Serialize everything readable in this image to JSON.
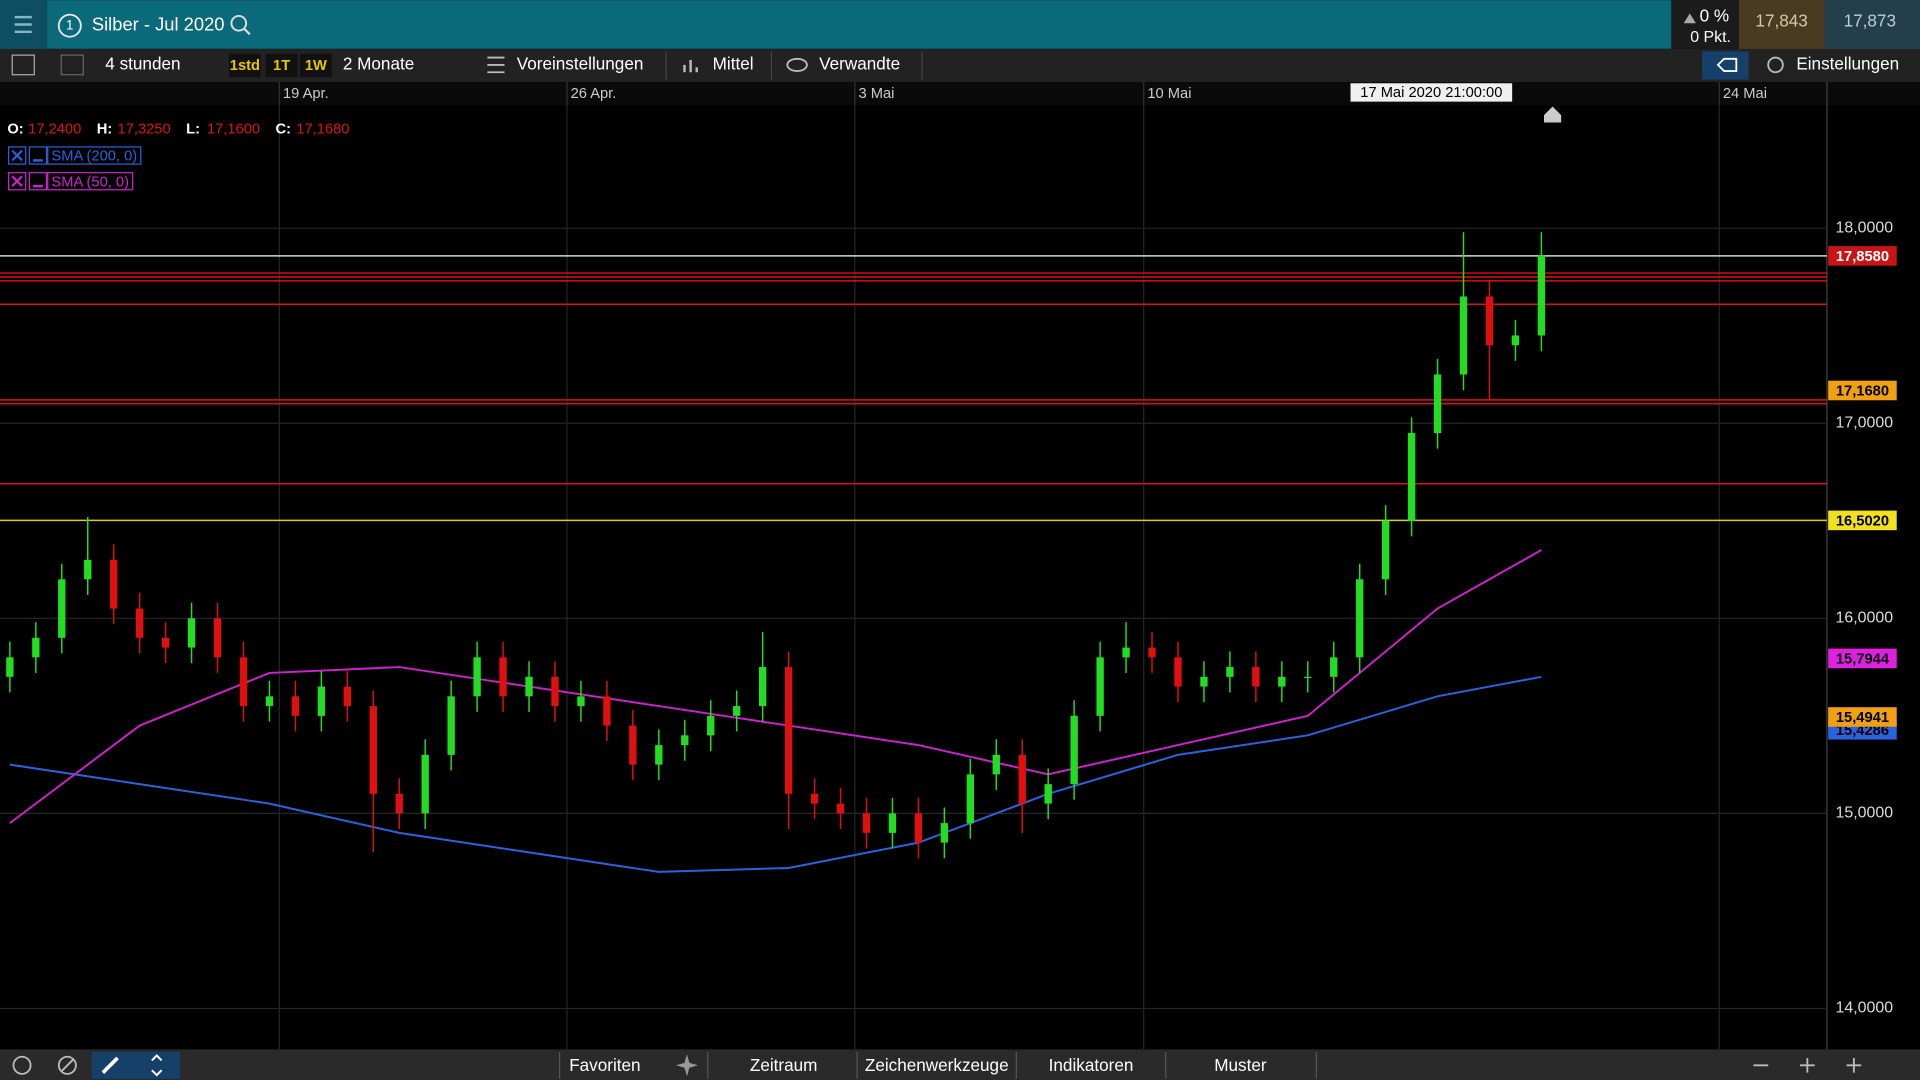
{
  "header": {
    "menu_number": "1",
    "instrument": "Silber - Jul 2020",
    "change_pct": "0 %",
    "change_pts": "0 Pkt.",
    "bid": "17,843",
    "ask": "17,873"
  },
  "toolbar": {
    "interval": "4 stunden",
    "quick": [
      "1std",
      "1T",
      "1W"
    ],
    "range": "2 Monate",
    "buttons": [
      "Voreinstellungen",
      "Mittel",
      "Verwandte"
    ],
    "settings": "Einstellungen"
  },
  "ohlc": [
    {
      "label": "O:",
      "value": "17,2400"
    },
    {
      "label": "H:",
      "value": "17,3250"
    },
    {
      "label": "L:",
      "value": "17,1600"
    },
    {
      "label": "C:",
      "value": "17,1680"
    }
  ],
  "footer": {
    "tabs": [
      "Favoriten",
      "Zeitraum",
      "Zeichenwerkzeuge",
      "Indikatoren",
      "Muster"
    ]
  },
  "chart_data": {
    "type": "candlestick",
    "up_color": "#22dd22",
    "down_color": "#e01010",
    "open": [
      15.7,
      15.8,
      15.9,
      16.2,
      16.3,
      16.05,
      15.9,
      15.85,
      16.0,
      15.8,
      15.55,
      15.6,
      15.5,
      15.65,
      15.55,
      15.1,
      15.0,
      15.3,
      15.6,
      15.8,
      15.6,
      15.7,
      15.55,
      15.6,
      15.45,
      15.25,
      15.35,
      15.4,
      15.5,
      15.55,
      15.75,
      15.1,
      15.05,
      15.0,
      14.9,
      15.0,
      14.85,
      14.95,
      15.2,
      15.3,
      15.05,
      15.15,
      15.5,
      15.8,
      15.85,
      15.8,
      15.65,
      15.7,
      15.75,
      15.65,
      15.7,
      15.7,
      15.8,
      16.2,
      16.5,
      16.95,
      17.25,
      17.65,
      17.4,
      17.45
    ],
    "high": [
      15.88,
      15.98,
      16.28,
      16.52,
      16.38,
      16.13,
      15.98,
      16.08,
      16.08,
      15.88,
      15.68,
      15.68,
      15.73,
      15.73,
      15.63,
      15.18,
      15.38,
      15.68,
      15.88,
      15.88,
      15.78,
      15.78,
      15.68,
      15.68,
      15.53,
      15.43,
      15.48,
      15.58,
      15.63,
      15.93,
      15.83,
      15.18,
      15.13,
      15.08,
      15.08,
      15.08,
      15.03,
      15.28,
      15.38,
      15.38,
      15.23,
      15.58,
      15.88,
      15.98,
      15.93,
      15.88,
      15.78,
      15.83,
      15.83,
      15.78,
      15.78,
      15.88,
      16.28,
      16.58,
      17.03,
      17.33,
      17.98,
      17.73,
      17.53,
      17.98
    ],
    "low": [
      15.62,
      15.72,
      15.82,
      16.12,
      15.97,
      15.82,
      15.77,
      15.77,
      15.72,
      15.47,
      15.47,
      15.42,
      15.42,
      15.47,
      14.8,
      14.92,
      14.92,
      15.22,
      15.52,
      15.52,
      15.52,
      15.47,
      15.47,
      15.37,
      15.17,
      15.17,
      15.27,
      15.32,
      15.42,
      15.47,
      14.92,
      14.97,
      14.92,
      14.82,
      14.82,
      14.77,
      14.77,
      14.87,
      15.12,
      14.9,
      14.97,
      15.07,
      15.42,
      15.72,
      15.72,
      15.57,
      15.57,
      15.62,
      15.57,
      15.57,
      15.62,
      15.62,
      15.72,
      16.12,
      16.42,
      16.87,
      17.17,
      17.12,
      17.32,
      17.37
    ],
    "close": [
      15.8,
      15.9,
      16.2,
      16.3,
      16.05,
      15.9,
      15.85,
      16.0,
      15.8,
      15.55,
      15.6,
      15.5,
      15.65,
      15.55,
      15.1,
      15.0,
      15.3,
      15.6,
      15.8,
      15.6,
      15.7,
      15.55,
      15.6,
      15.45,
      15.25,
      15.35,
      15.4,
      15.5,
      15.55,
      15.75,
      15.1,
      15.05,
      15.0,
      14.9,
      15.0,
      14.85,
      14.95,
      15.2,
      15.3,
      15.05,
      15.15,
      15.5,
      15.8,
      15.85,
      15.8,
      15.65,
      15.7,
      15.75,
      15.65,
      15.7,
      15.7,
      15.8,
      16.2,
      16.5,
      16.95,
      17.25,
      17.65,
      17.4,
      17.45,
      17.86
    ],
    "series": [
      {
        "name": "SMA (200, 0)",
        "color": "#2a63e0",
        "x": [
          0,
          5,
          10,
          15,
          20,
          25,
          30,
          35,
          40,
          45,
          50,
          55,
          59
        ],
        "values": [
          15.25,
          15.15,
          15.05,
          14.9,
          14.8,
          14.7,
          14.72,
          14.85,
          15.1,
          15.3,
          15.4,
          15.6,
          15.7
        ]
      },
      {
        "name": "SMA (50, 0)",
        "color": "#d020d0",
        "x": [
          0,
          5,
          10,
          15,
          20,
          25,
          30,
          35,
          40,
          45,
          50,
          55,
          59
        ],
        "values": [
          14.95,
          15.45,
          15.72,
          15.75,
          15.65,
          15.55,
          15.45,
          15.35,
          15.2,
          15.35,
          15.5,
          16.05,
          16.35
        ]
      }
    ],
    "xlim": [
      -0.38,
      70
    ],
    "xticks": [
      {
        "value": 10.38,
        "label": "19 Apr."
      },
      {
        "value": 21.46,
        "label": "26 Apr."
      },
      {
        "value": 32.55,
        "label": "3 Mai"
      },
      {
        "value": 43.68,
        "label": "10 Mai"
      },
      {
        "value": 65.85,
        "label": "24 Mai"
      }
    ],
    "crosshair": {
      "value": 54.76,
      "label": "17 Mai 2020 21:00:00"
    },
    "ylim": [
      13.79,
      18.63
    ],
    "yticks": [
      {
        "value": 14,
        "label": "14,0000"
      },
      {
        "value": 15,
        "label": "15,0000"
      },
      {
        "value": 16,
        "label": "16,0000"
      },
      {
        "value": 17,
        "label": "17,0000"
      },
      {
        "value": 18,
        "label": "18,0000"
      }
    ],
    "grid": true,
    "levels": [
      {
        "value": 17.858,
        "color": "#d8d8d8"
      },
      {
        "value": 17.77,
        "color": "#e01010"
      },
      {
        "value": 17.75,
        "color": "#e01010"
      },
      {
        "value": 17.73,
        "color": "#e01010"
      },
      {
        "value": 17.61,
        "color": "#e01010"
      },
      {
        "value": 17.12,
        "color": "#e01010"
      },
      {
        "value": 17.1,
        "color": "#e01010"
      },
      {
        "value": 16.69,
        "color": "#e01010"
      },
      {
        "value": 16.502,
        "color": "#d8d020"
      }
    ],
    "price_labels": [
      {
        "value": 17.858,
        "label": "17,8580",
        "color": "#c81414",
        "text_color": "#ffffff"
      },
      {
        "value": 17.168,
        "label": "17,1680",
        "color": "#f0a010",
        "text_color": "#000000"
      },
      {
        "value": 16.502,
        "label": "16,5020",
        "color": "#f0e020",
        "text_color": "#000000"
      },
      {
        "value": 15.7944,
        "label": "15,7944",
        "color": "#e020e0",
        "text_color": "#000000"
      },
      {
        "value": 15.4286,
        "label": "15,4286",
        "color": "#2a63e0",
        "text_color": "#000000"
      },
      {
        "value": 15.4941,
        "label": "15,4941",
        "color": "#f0a010",
        "text_color": "#000000"
      }
    ]
  }
}
